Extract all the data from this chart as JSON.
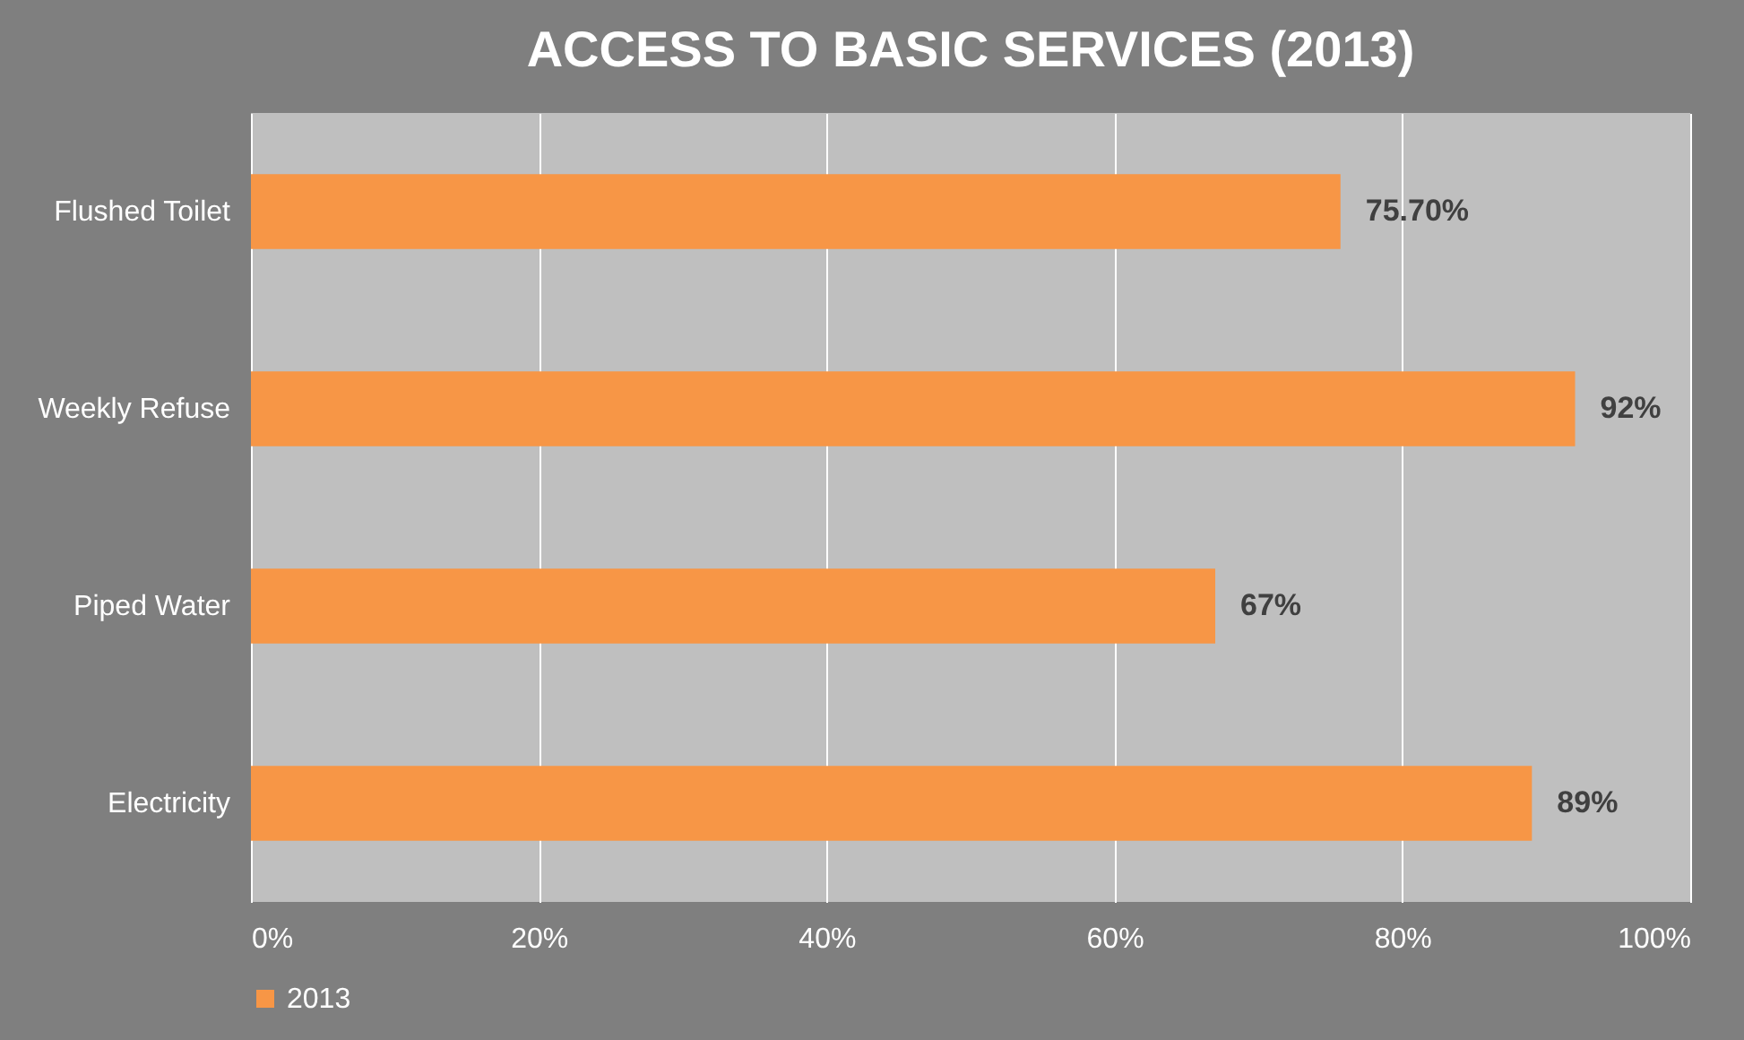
{
  "chart_data": {
    "type": "bar",
    "orientation": "horizontal",
    "title": "ACCESS TO BASIC SERVICES (2013)",
    "categories": [
      "Flushed Toilet",
      "Weekly Refuse",
      "Piped Water",
      "Electricity"
    ],
    "series": [
      {
        "name": "2013",
        "color": "#f79646",
        "values": [
          75.7,
          92,
          67,
          89
        ],
        "value_labels": [
          "75.70%",
          "92%",
          "67%",
          "89%"
        ]
      }
    ],
    "xlim": [
      0,
      100
    ],
    "xticks": [
      {
        "value": 0,
        "label": "0%"
      },
      {
        "value": 20,
        "label": "20%"
      },
      {
        "value": 40,
        "label": "40%"
      },
      {
        "value": 60,
        "label": "60%"
      },
      {
        "value": 80,
        "label": "80%"
      },
      {
        "value": 100,
        "label": "100%"
      }
    ],
    "grid": "x",
    "legend": "bottom"
  }
}
